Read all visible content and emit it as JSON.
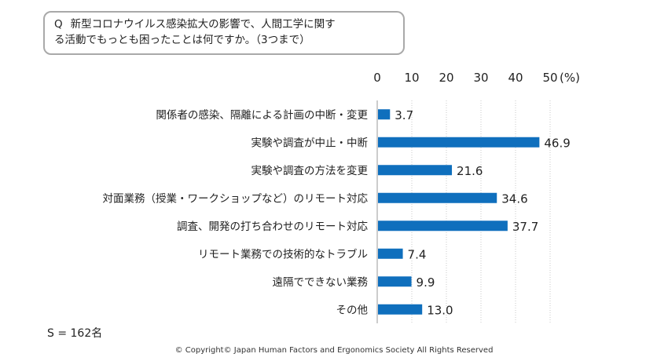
{
  "question": {
    "prefix": "Q",
    "line1": "新型コロナウイルス感染拡大の影響で、人間工学に関す",
    "line2": "る活動でもっとも困ったことは何ですか。（3つまで）"
  },
  "chart_data": {
    "type": "bar",
    "orientation": "horizontal",
    "categories": [
      "関係者の感染、隔離による計画の中断・変更",
      "実験や調査が中止・中断",
      "実験や調査の方法を変更",
      "対面業務（授業・ワークショップなど）のリモート対応",
      "調査、開発の打ち合わせのリモート対応",
      "リモート業務での技術的なトラブル",
      "遠隔でできない業務",
      "その他"
    ],
    "values": [
      3.7,
      46.9,
      21.6,
      34.6,
      37.7,
      7.4,
      9.9,
      13.0
    ],
    "value_labels": [
      "3.7",
      "46.9",
      "21.6",
      "34.6",
      "37.7",
      "7.4",
      "9.9",
      "13.0"
    ],
    "xlim": [
      0,
      50
    ],
    "ticks": [
      "0",
      "10",
      "20",
      "30",
      "40",
      "50"
    ],
    "unit": "(%)",
    "bar_color": "#0f6fbd",
    "grid": "vertical dotted"
  },
  "footer": {
    "sample": "S = 162名",
    "copyright": "© Copyright© Japan Human Factors and Ergonomics Society All Rights Reserved"
  }
}
